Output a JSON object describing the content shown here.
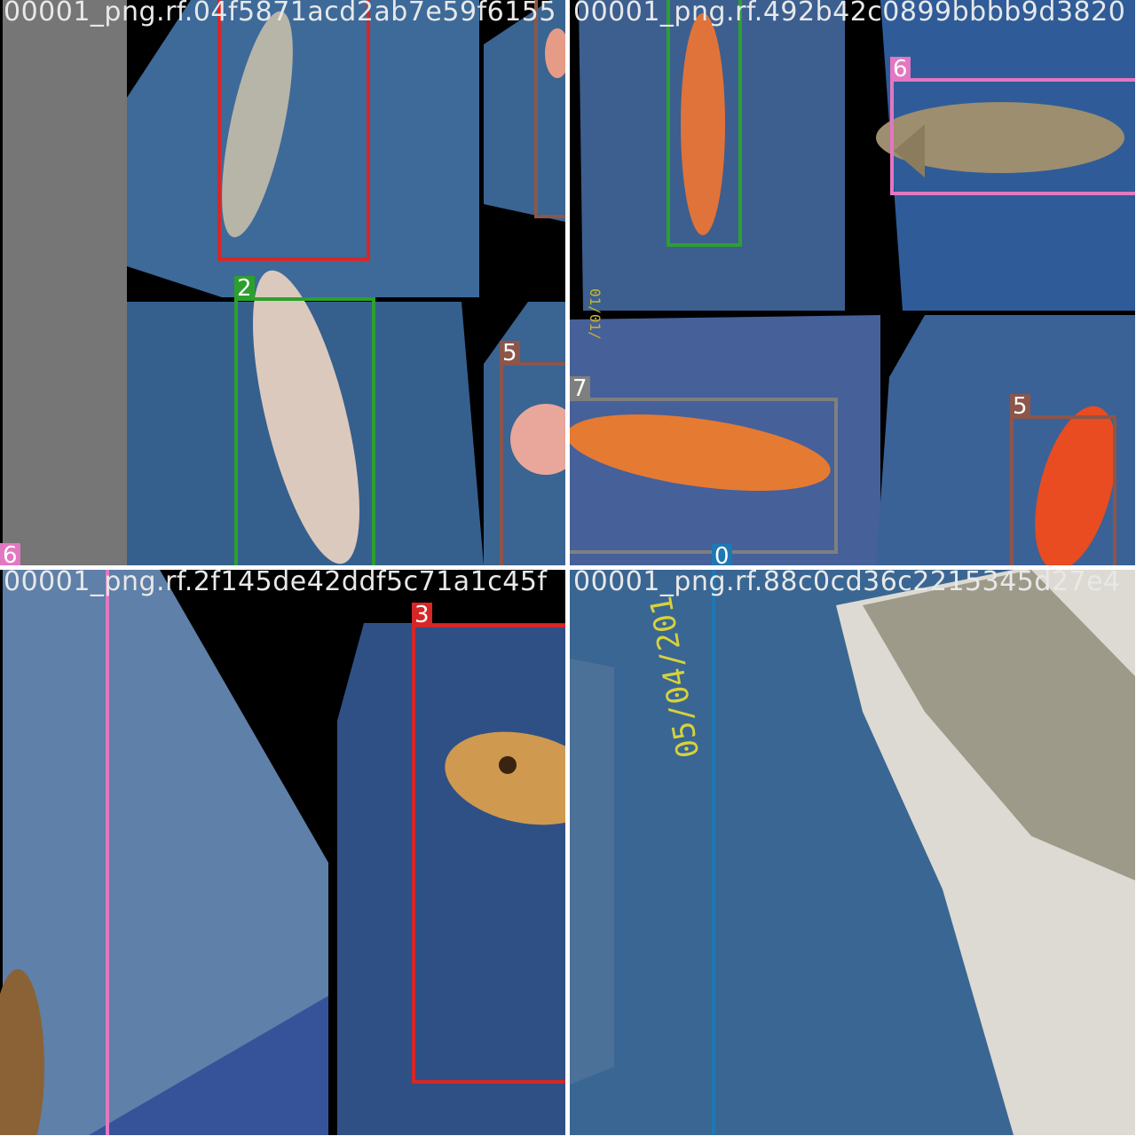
{
  "colors": {
    "class_0": "#1f77b4",
    "class_2": "#2ca02c",
    "class_3": "#d62728",
    "class_5": "#8c564b",
    "class_6": "#e377c2",
    "class_7": "#7f7f7f",
    "board": "#3a5f8f",
    "filename_text": "#e8e8e8"
  },
  "tiles": [
    {
      "filename": "00001_png.rf.04f5871acd2ab7e59f6155",
      "labels": [
        "2",
        "5",
        "6"
      ]
    },
    {
      "filename": "00001_png.rf.492b42c0899bbbb9d3820",
      "labels": [
        "6",
        "7",
        "5",
        "0"
      ],
      "date_stamp": "01/01/"
    },
    {
      "filename": "00001_png.rf.2f145de42ddf5c71a1c45f",
      "labels": [
        "3"
      ]
    },
    {
      "filename": "00001_png.rf.88c0cd36c2215345d27e4",
      "date_stamp": "05/04/201"
    }
  ]
}
